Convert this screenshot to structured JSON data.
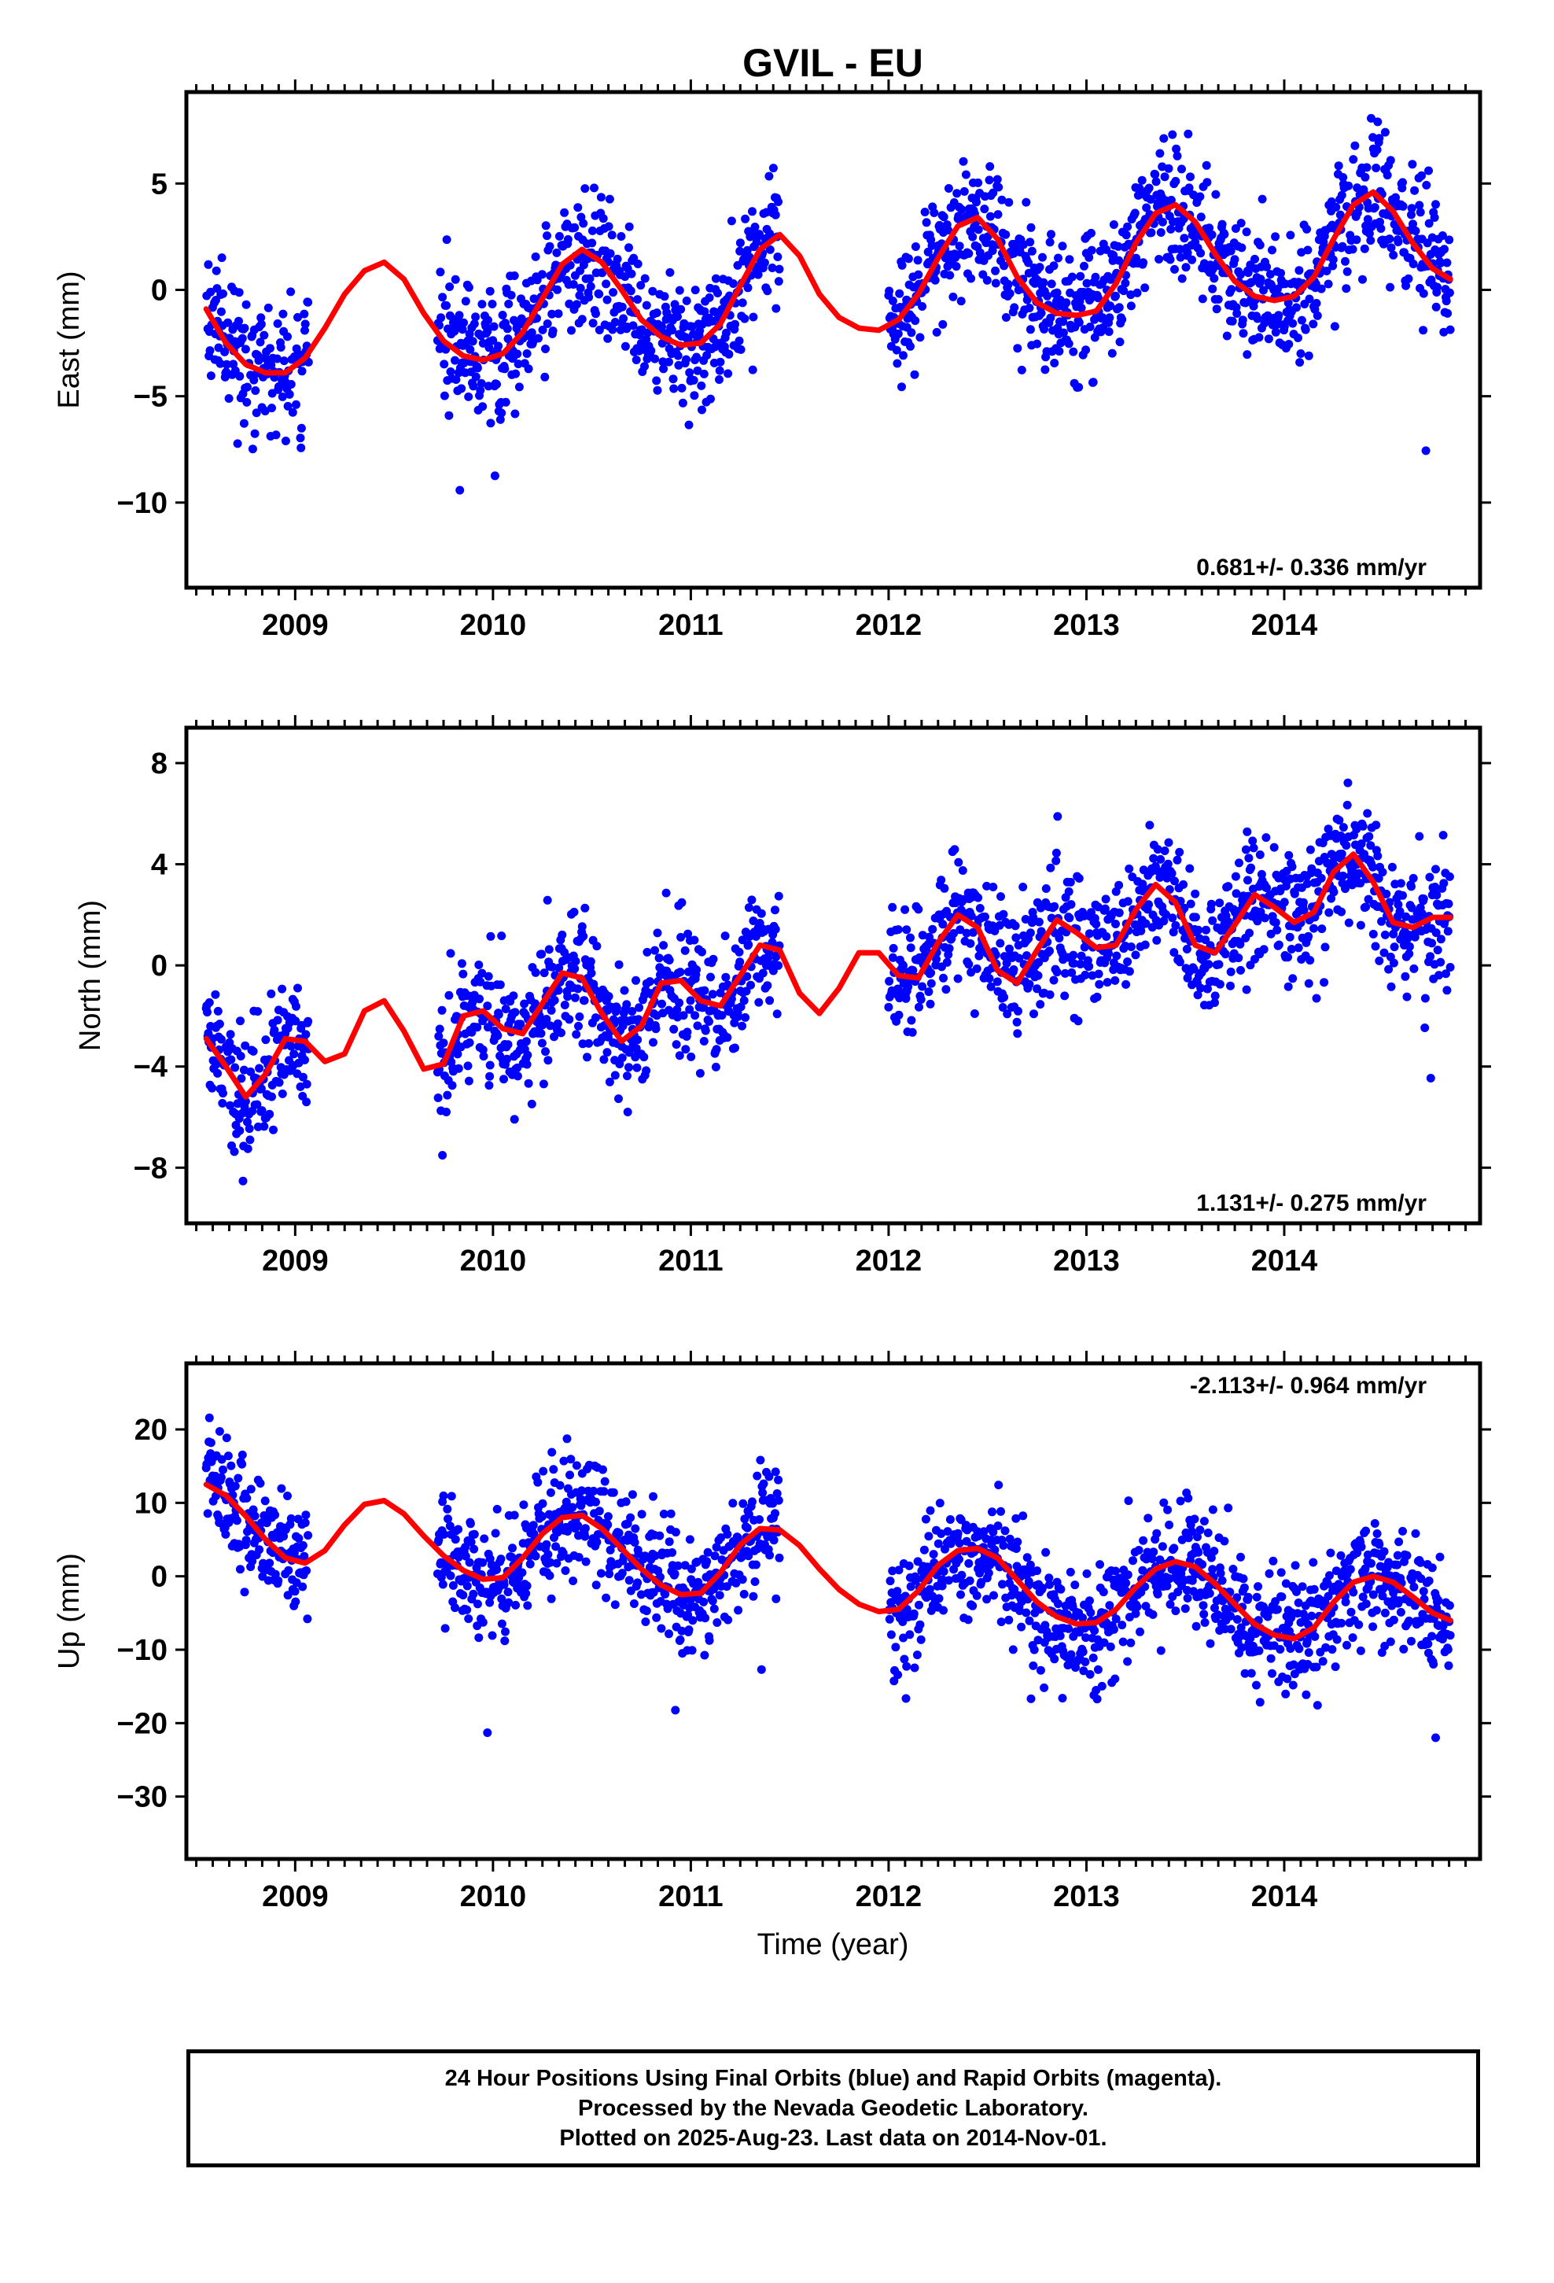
{
  "title": "GVIL - EU",
  "xlabel": "Time (year)",
  "caption": [
    "24 Hour Positions Using Final Orbits (blue) and Rapid Orbits (magenta).",
    "Processed by the Nevada Geodetic Laboratory.",
    "Plotted on 2025-Aug-23. Last data on 2014-Nov-01."
  ],
  "colors": {
    "points": "#0000ff",
    "model": "#ff0000",
    "frame": "#000000",
    "background": "#ffffff"
  },
  "chart_data": [
    {
      "type": "scatter",
      "ylabel": "East (mm)",
      "rate_label": "0.681+/- 0.336 mm/yr",
      "rate_position": "bottom-right",
      "xlim": [
        2008.45,
        2014.99
      ],
      "ylim": [
        -14,
        9.3
      ],
      "xticks": [
        2009,
        2010,
        2011,
        2012,
        2013,
        2014
      ],
      "yticks": [
        5,
        0,
        -5,
        -10
      ],
      "data_segments": [
        [
          2008.55,
          2009.07
        ],
        [
          2009.72,
          2011.45
        ],
        [
          2012.0,
          2014.84
        ]
      ],
      "model": {
        "x": [
          2008.55,
          2008.65,
          2008.75,
          2008.85,
          2008.95,
          2009.05,
          2009.15,
          2009.25,
          2009.35,
          2009.45,
          2009.55,
          2009.65,
          2009.75,
          2009.85,
          2009.95,
          2010.05,
          2010.15,
          2010.25,
          2010.35,
          2010.45,
          2010.55,
          2010.65,
          2010.75,
          2010.85,
          2010.95,
          2011.05,
          2011.15,
          2011.25,
          2011.35,
          2011.45,
          2011.55,
          2011.65,
          2011.75,
          2011.85,
          2011.95,
          2012.05,
          2012.15,
          2012.25,
          2012.35,
          2012.45,
          2012.55,
          2012.65,
          2012.75,
          2012.85,
          2012.95,
          2013.05,
          2013.15,
          2013.25,
          2013.35,
          2013.45,
          2013.55,
          2013.65,
          2013.75,
          2013.85,
          2013.95,
          2014.05,
          2014.15,
          2014.25,
          2014.35,
          2014.45,
          2014.55,
          2014.65,
          2014.75,
          2014.84
        ],
        "y": [
          -0.9,
          -2.5,
          -3.5,
          -3.9,
          -3.9,
          -3.2,
          -1.8,
          -0.2,
          0.9,
          1.3,
          0.5,
          -1.1,
          -2.4,
          -3.1,
          -3.3,
          -3.0,
          -2.0,
          -0.4,
          1.2,
          1.9,
          1.3,
          0.0,
          -1.4,
          -2.2,
          -2.6,
          -2.5,
          -1.6,
          0.2,
          1.9,
          2.6,
          1.6,
          -0.2,
          -1.3,
          -1.8,
          -1.9,
          -1.4,
          -0.2,
          1.5,
          3.0,
          3.4,
          2.4,
          0.6,
          -0.6,
          -1.1,
          -1.2,
          -1.0,
          0.3,
          2.2,
          3.6,
          4.0,
          3.2,
          1.7,
          0.4,
          -0.3,
          -0.5,
          -0.3,
          0.6,
          2.4,
          4.0,
          4.6,
          3.7,
          2.2,
          1.0,
          0.5
        ]
      }
    },
    {
      "type": "scatter",
      "ylabel": "North (mm)",
      "rate_label": "1.131+/- 0.275 mm/yr",
      "rate_position": "bottom-right",
      "xlim": [
        2008.45,
        2014.99
      ],
      "ylim": [
        -10.2,
        9.4
      ],
      "xticks": [
        2009,
        2010,
        2011,
        2012,
        2013,
        2014
      ],
      "yticks": [
        8,
        4,
        0,
        -4,
        -8
      ],
      "data_segments": [
        [
          2008.55,
          2009.07
        ],
        [
          2009.72,
          2011.45
        ],
        [
          2012.0,
          2014.84
        ]
      ],
      "model": {
        "x": [
          2008.55,
          2008.65,
          2008.75,
          2008.85,
          2008.95,
          2009.05,
          2009.15,
          2009.25,
          2009.35,
          2009.45,
          2009.55,
          2009.65,
          2009.75,
          2009.85,
          2009.95,
          2010.05,
          2010.15,
          2010.25,
          2010.35,
          2010.45,
          2010.55,
          2010.65,
          2010.75,
          2010.85,
          2010.95,
          2011.05,
          2011.15,
          2011.25,
          2011.35,
          2011.45,
          2011.55,
          2011.65,
          2011.75,
          2011.85,
          2011.95,
          2012.05,
          2012.15,
          2012.25,
          2012.35,
          2012.45,
          2012.55,
          2012.65,
          2012.75,
          2012.85,
          2012.95,
          2013.05,
          2013.15,
          2013.25,
          2013.35,
          2013.45,
          2013.55,
          2013.65,
          2013.75,
          2013.85,
          2013.95,
          2014.05,
          2014.15,
          2014.25,
          2014.35,
          2014.45,
          2014.55,
          2014.65,
          2014.75,
          2014.84
        ],
        "y": [
          -2.9,
          -4.0,
          -5.2,
          -4.3,
          -2.9,
          -3.0,
          -3.8,
          -3.5,
          -1.8,
          -1.4,
          -2.6,
          -4.1,
          -3.9,
          -2.0,
          -1.8,
          -2.5,
          -2.7,
          -1.5,
          -0.3,
          -0.5,
          -1.9,
          -3.0,
          -2.4,
          -0.7,
          -0.6,
          -1.4,
          -1.6,
          -0.4,
          0.8,
          0.6,
          -1.1,
          -1.9,
          -0.9,
          0.5,
          0.5,
          -0.4,
          -0.5,
          0.9,
          2.0,
          1.5,
          -0.2,
          -0.7,
          0.6,
          1.8,
          1.3,
          0.7,
          0.8,
          2.2,
          3.2,
          2.5,
          0.8,
          0.5,
          1.6,
          2.8,
          2.3,
          1.7,
          2.1,
          3.7,
          4.4,
          3.3,
          1.7,
          1.5,
          1.9,
          1.9
        ]
      }
    },
    {
      "type": "scatter",
      "ylabel": "Up (mm)",
      "rate_label": "-2.113+/- 0.964 mm/yr",
      "rate_position": "top-right",
      "xlim": [
        2008.45,
        2014.99
      ],
      "ylim": [
        -38.5,
        29
      ],
      "xticks": [
        2009,
        2010,
        2011,
        2012,
        2013,
        2014
      ],
      "yticks": [
        20,
        10,
        0,
        -10,
        -20,
        -30
      ],
      "data_segments": [
        [
          2008.55,
          2009.07
        ],
        [
          2009.72,
          2011.45
        ],
        [
          2012.0,
          2014.84
        ]
      ],
      "model": {
        "x": [
          2008.55,
          2008.65,
          2008.75,
          2008.85,
          2008.95,
          2009.05,
          2009.15,
          2009.25,
          2009.35,
          2009.45,
          2009.55,
          2009.65,
          2009.75,
          2009.85,
          2009.95,
          2010.05,
          2010.15,
          2010.25,
          2010.35,
          2010.45,
          2010.55,
          2010.65,
          2010.75,
          2010.85,
          2010.95,
          2011.05,
          2011.15,
          2011.25,
          2011.35,
          2011.45,
          2011.55,
          2011.65,
          2011.75,
          2011.85,
          2011.95,
          2012.05,
          2012.15,
          2012.25,
          2012.35,
          2012.45,
          2012.55,
          2012.65,
          2012.75,
          2012.85,
          2012.95,
          2013.05,
          2013.15,
          2013.25,
          2013.35,
          2013.45,
          2013.55,
          2013.65,
          2013.75,
          2013.85,
          2013.95,
          2014.05,
          2014.15,
          2014.25,
          2014.35,
          2014.45,
          2014.55,
          2014.65,
          2014.75,
          2014.84
        ],
        "y": [
          12.5,
          11.0,
          8.2,
          5.0,
          2.5,
          1.8,
          3.5,
          7.0,
          9.8,
          10.3,
          8.5,
          5.5,
          2.8,
          0.8,
          -0.4,
          -0.2,
          2.5,
          5.8,
          8.0,
          8.3,
          6.5,
          3.8,
          1.0,
          -1.2,
          -2.5,
          -2.3,
          0.5,
          4.3,
          6.5,
          6.3,
          4.2,
          1.0,
          -1.8,
          -3.8,
          -4.8,
          -4.5,
          -2.0,
          1.5,
          3.5,
          3.8,
          2.5,
          -0.5,
          -3.5,
          -5.5,
          -6.5,
          -6.3,
          -4.5,
          -1.5,
          1.0,
          2.0,
          1.3,
          -1.0,
          -3.8,
          -6.5,
          -8.0,
          -8.5,
          -7.0,
          -3.5,
          -0.8,
          0.0,
          -0.8,
          -2.8,
          -5.0,
          -6.0
        ]
      }
    }
  ]
}
